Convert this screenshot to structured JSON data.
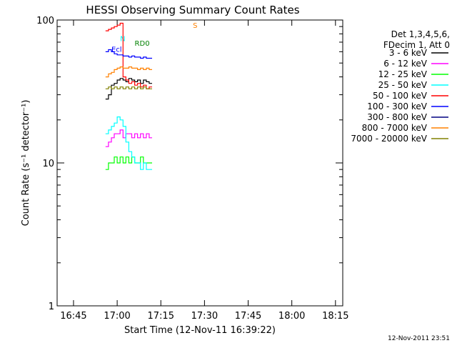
{
  "chart_data": {
    "type": "line",
    "title": "HESSI Observing Summary Count Rates",
    "xlabel": "Start Time (12-Nov-11 16:39:22)",
    "ylabel": "Count Rate (s⁻¹ detector⁻¹)",
    "ylog": true,
    "xlim": [
      "16:39:22",
      "18:17:30"
    ],
    "ylim": [
      1,
      100
    ],
    "x_ticks": [
      "16:45",
      "17:00",
      "17:15",
      "17:30",
      "17:45",
      "18:00",
      "18:15"
    ],
    "y_ticks": [
      "1",
      "10",
      "100"
    ],
    "legend_position": "right",
    "legend_header": [
      "Det 1,3,4,5,6,",
      "FDecim 1, Att 0"
    ],
    "footer_date": "12-Nov-2011 23:51",
    "annotations": [
      {
        "text": "N",
        "x": "17:01",
        "y": 71,
        "color": "#00ffff"
      },
      {
        "text": "RD0",
        "x": "17:06",
        "y": 66,
        "color": "#008000"
      },
      {
        "text": "Ecl",
        "x": "16:58",
        "y": 60,
        "color": "#0000ff"
      },
      {
        "text": "S",
        "x": "17:26",
        "y": 88,
        "color": "#ff8000"
      }
    ],
    "series": [
      {
        "name": "3 - 6 keV",
        "color": "#000000",
        "x": [
          "16:56",
          "16:57",
          "16:58",
          "16:59",
          "17:00",
          "17:01",
          "17:02",
          "17:03",
          "17:04",
          "17:05",
          "17:06",
          "17:07",
          "17:08",
          "17:09",
          "17:10",
          "17:11"
        ],
        "values": [
          28,
          30,
          35,
          36,
          38,
          39,
          38,
          37,
          39,
          38,
          37,
          38,
          36,
          38,
          37,
          36
        ]
      },
      {
        "name": "6 - 12 keV",
        "color": "#ff00ff",
        "x": [
          "16:56",
          "16:57",
          "16:58",
          "16:59",
          "17:00",
          "17:01",
          "17:02",
          "17:03",
          "17:04",
          "17:05",
          "17:06",
          "17:07",
          "17:08",
          "17:09",
          "17:10",
          "17:11"
        ],
        "values": [
          13,
          14,
          15,
          16,
          16,
          17,
          15,
          16,
          16,
          15,
          16,
          15,
          16,
          15,
          16,
          15
        ]
      },
      {
        "name": "12 - 25 keV",
        "color": "#00ff00",
        "x": [
          "16:56",
          "16:57",
          "16:58",
          "16:59",
          "17:00",
          "17:01",
          "17:02",
          "17:03",
          "17:04",
          "17:05",
          "17:06",
          "17:07",
          "17:08",
          "17:09",
          "17:10",
          "17:11"
        ],
        "values": [
          9,
          10,
          10,
          11,
          10,
          11,
          10,
          11,
          10,
          11,
          10,
          10,
          11,
          10,
          10,
          10
        ]
      },
      {
        "name": "25 - 50 keV",
        "color": "#00ffff",
        "x": [
          "16:56",
          "16:57",
          "16:58",
          "16:59",
          "17:00",
          "17:01",
          "17:02",
          "17:03",
          "17:04",
          "17:05",
          "17:06",
          "17:07",
          "17:08",
          "17:09",
          "17:10",
          "17:11"
        ],
        "values": [
          16,
          17,
          18,
          19,
          21,
          20,
          18,
          14,
          12,
          11,
          10,
          10,
          9,
          10,
          9,
          9
        ]
      },
      {
        "name": "50 - 100 keV",
        "color": "#ff0000",
        "x": [
          "16:56",
          "16:57",
          "16:58",
          "16:59",
          "17:00",
          "17:01",
          "17:02",
          "17:03",
          "17:04",
          "17:05",
          "17:06",
          "17:07",
          "17:08",
          "17:09",
          "17:10",
          "17:11"
        ],
        "values": [
          84,
          86,
          88,
          90,
          92,
          95,
          40,
          38,
          36,
          37,
          35,
          36,
          34,
          35,
          33,
          34
        ]
      },
      {
        "name": "100 - 300 keV",
        "color": "#0000ff",
        "x": [
          "16:56",
          "16:57",
          "16:58",
          "16:59",
          "17:00",
          "17:01",
          "17:02",
          "17:03",
          "17:04",
          "17:05",
          "17:06",
          "17:07",
          "17:08",
          "17:09",
          "17:10",
          "17:11"
        ],
        "values": [
          60,
          62,
          60,
          58,
          57,
          57,
          56,
          56,
          55,
          56,
          55,
          55,
          54,
          55,
          54,
          54
        ]
      },
      {
        "name": "300 - 800 keV",
        "color": "#000080",
        "x": [],
        "values": []
      },
      {
        "name": "800 - 7000 keV",
        "color": "#ff8000",
        "x": [
          "16:56",
          "16:57",
          "16:58",
          "16:59",
          "17:00",
          "17:01",
          "17:02",
          "17:03",
          "17:04",
          "17:05",
          "17:06",
          "17:07",
          "17:08",
          "17:09",
          "17:10",
          "17:11"
        ],
        "values": [
          40,
          42,
          43,
          45,
          46,
          47,
          46,
          46,
          47,
          46,
          46,
          45,
          46,
          45,
          46,
          45
        ]
      },
      {
        "name": "7000 - 20000 keV",
        "color": "#808000",
        "x": [
          "16:56",
          "16:57",
          "16:58",
          "16:59",
          "17:00",
          "17:01",
          "17:02",
          "17:03",
          "17:04",
          "17:05",
          "17:06",
          "17:07",
          "17:08",
          "17:09",
          "17:10",
          "17:11"
        ],
        "values": [
          33,
          34,
          33,
          34,
          33,
          34,
          33,
          34,
          33,
          34,
          33,
          34,
          33,
          34,
          33,
          33
        ]
      }
    ]
  }
}
